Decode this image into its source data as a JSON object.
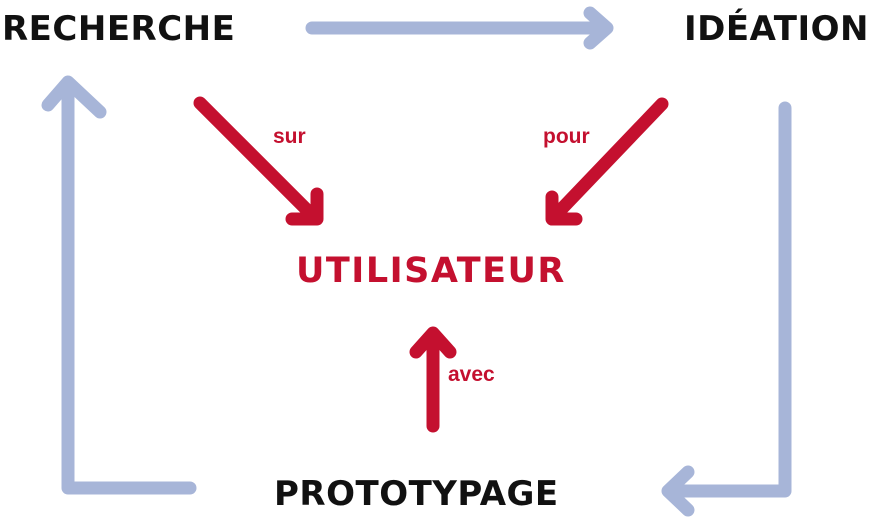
{
  "diagram": {
    "stages": {
      "research": "RECHERCHE",
      "ideation": "IDÉATION",
      "prototyping": "PROTOTYPAGE"
    },
    "center": "UTILISATEUR",
    "relations": {
      "research_to_user": "sur",
      "ideation_to_user": "pour",
      "prototyping_to_user": "avec"
    },
    "colors": {
      "cycle_arrow": "#a7b5d8",
      "user_arrow": "#c4102f",
      "stage_text": "#111111",
      "user_text": "#c4102f"
    }
  }
}
